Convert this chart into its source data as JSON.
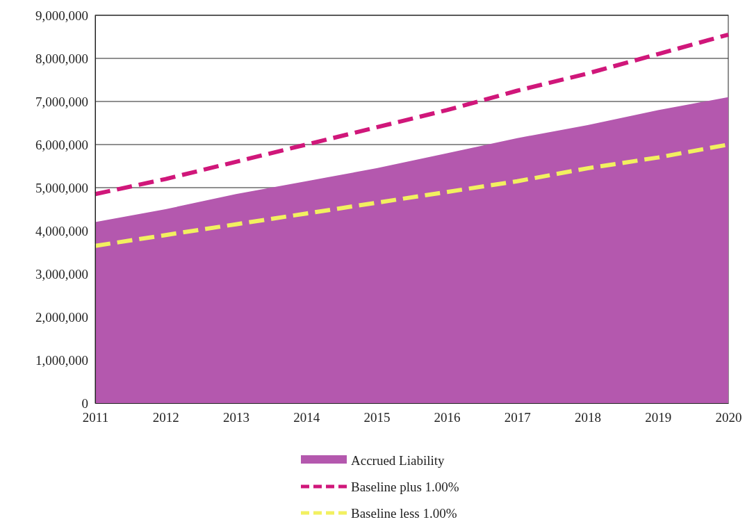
{
  "chart_data": {
    "type": "area",
    "x": [
      2011,
      2012,
      2013,
      2014,
      2015,
      2016,
      2017,
      2018,
      2019,
      2020
    ],
    "xlim": [
      2011,
      2020
    ],
    "xticks": [
      2011,
      2012,
      2013,
      2014,
      2015,
      2016,
      2017,
      2018,
      2019,
      2020
    ],
    "ylim": [
      0,
      9000000
    ],
    "yticks": [
      {
        "value": 0,
        "label": "0"
      },
      {
        "value": 1000000,
        "label": "1,000,000"
      },
      {
        "value": 2000000,
        "label": "2,000,000"
      },
      {
        "value": 3000000,
        "label": "3,000,000"
      },
      {
        "value": 4000000,
        "label": "4,000,000"
      },
      {
        "value": 5000000,
        "label": "5,000,000"
      },
      {
        "value": 6000000,
        "label": "6,000,000"
      },
      {
        "value": 7000000,
        "label": "7,000,000"
      },
      {
        "value": 8000000,
        "label": "8,000,000"
      },
      {
        "value": 9000000,
        "label": "9,000,000"
      }
    ],
    "grid": "y",
    "legend": "bottom",
    "series": [
      {
        "name": "Accrued Liability",
        "color": "#b458ae",
        "values": [
          4200000,
          4500000,
          4850000,
          5150000,
          5450000,
          5800000,
          6150000,
          6450000,
          6800000,
          7100000
        ]
      },
      {
        "name": "Baseline plus 1.00%",
        "type": "line",
        "line_style": "dashed",
        "color": "#d0177a",
        "values": [
          4850000,
          5200000,
          5600000,
          6000000,
          6400000,
          6800000,
          7250000,
          7650000,
          8100000,
          8550000
        ]
      },
      {
        "name": "Baseline less 1.00%",
        "type": "line",
        "line_style": "dashed",
        "color": "#f2f060",
        "values": [
          3650000,
          3900000,
          4150000,
          4400000,
          4650000,
          4900000,
          5150000,
          5450000,
          5700000,
          6000000
        ]
      }
    ]
  }
}
